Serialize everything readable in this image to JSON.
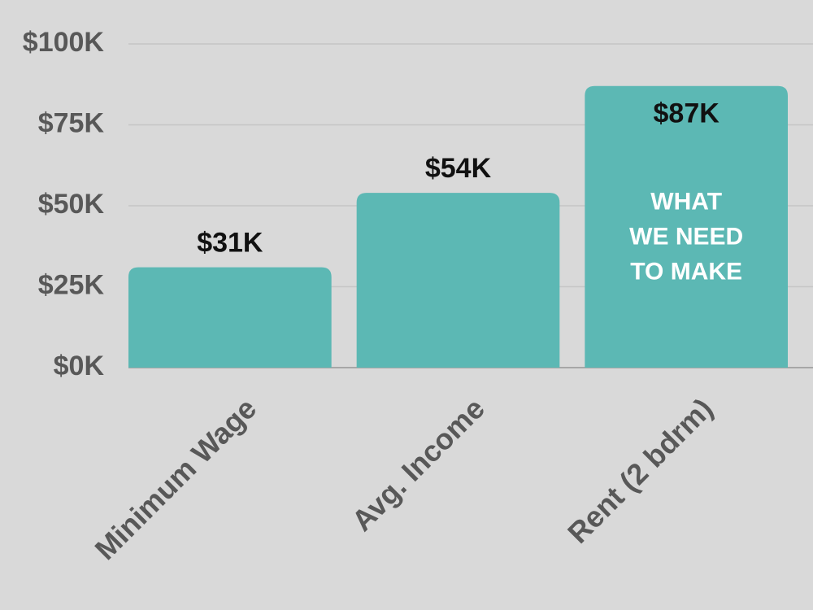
{
  "chart_data": {
    "type": "bar",
    "categories": [
      "Minimum Wage",
      "Avg. Income",
      "Rent (2 bdrm)"
    ],
    "values": [
      31000,
      54000,
      87000
    ],
    "value_labels": [
      "$31K",
      "$54K",
      "$87K"
    ],
    "color": "#5cb8b4",
    "ylim": [
      0,
      100000
    ],
    "yticks": [
      {
        "value": 0,
        "label": "$0K"
      },
      {
        "value": 25000,
        "label": "$25K"
      },
      {
        "value": 50000,
        "label": "$50K"
      },
      {
        "value": 75000,
        "label": "$75K"
      },
      {
        "value": 100000,
        "label": "$100K"
      }
    ],
    "grid": true,
    "annotation": [
      "WHAT",
      "WE NEED",
      "TO MAKE"
    ]
  }
}
